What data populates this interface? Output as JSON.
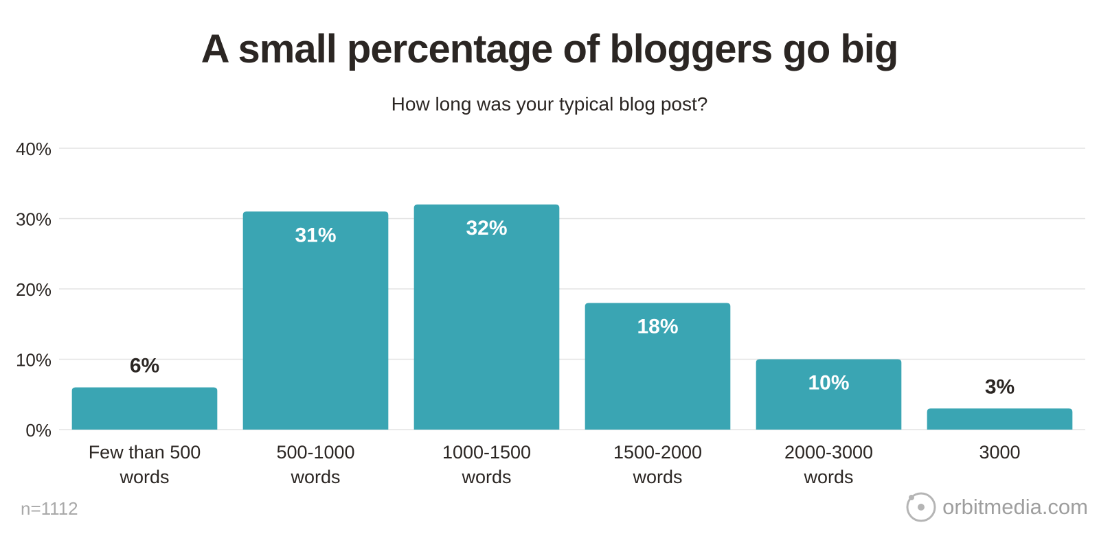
{
  "title": "A small percentage of bloggers go big",
  "footnote": "n=1112",
  "brand": "orbitmedia.com",
  "colors": {
    "bar": "#3aa5b3",
    "grid": "#e3e3e3",
    "text_dark": "#2b2623",
    "label_inside": "#ffffff",
    "muted": "#a9a9a9"
  },
  "chart_data": {
    "type": "bar",
    "subtitle": "How long was your typical blog post?",
    "categories": [
      [
        "Few than 500",
        "words"
      ],
      [
        "500-1000",
        "words"
      ],
      [
        "1000-1500",
        "words"
      ],
      [
        "1500-2000",
        "words"
      ],
      [
        "2000-3000",
        "words"
      ],
      [
        "3000"
      ]
    ],
    "values": [
      6,
      31,
      32,
      18,
      10,
      3
    ],
    "value_labels": [
      "6%",
      "31%",
      "32%",
      "18%",
      "10%",
      "3%"
    ],
    "ylim": [
      0,
      40
    ],
    "yticks": [
      0,
      10,
      20,
      30,
      40
    ],
    "ytick_labels": [
      "0%",
      "10%",
      "20%",
      "30%",
      "40%"
    ],
    "xlabel": "",
    "ylabel": "",
    "grid": true,
    "legend": "none"
  }
}
